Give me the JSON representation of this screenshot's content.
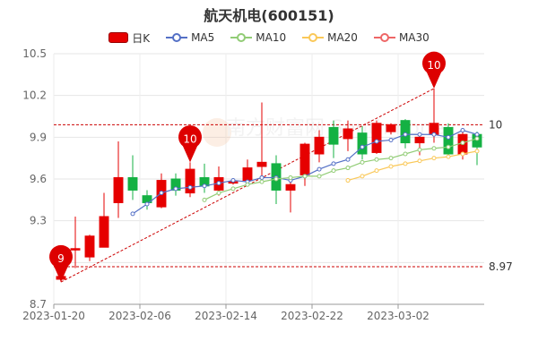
{
  "colors": {
    "up": "#e60000",
    "down": "#14b143",
    "ma5": "#5470c6",
    "ma10": "#91cc75",
    "ma20": "#fac858",
    "ma30": "#ee6666",
    "pin": "#dd0000",
    "ref": "#cc0000"
  },
  "watermark": "南方财富网 Southmoney",
  "chart_data": {
    "type": "candlestick",
    "title": "航天机电(600151)",
    "legend": [
      "日K",
      "MA5",
      "MA10",
      "MA20",
      "MA30"
    ],
    "legend_placement": "top-center",
    "ylim": [
      8.7,
      10.5
    ],
    "yticks": [
      8.7,
      9.0,
      9.3,
      9.6,
      9.9,
      10.2,
      10.5
    ],
    "ytick_labels": [
      "8.7",
      "",
      "9.3",
      "9.6",
      "9.9",
      "10.2",
      "10.5"
    ],
    "xtick_labels": [
      {
        "index": 0,
        "label": "2023-01-20"
      },
      {
        "index": 6,
        "label": "2023-02-06"
      },
      {
        "index": 12,
        "label": "2023-02-14"
      },
      {
        "index": 18,
        "label": "2023-02-22"
      },
      {
        "index": 24,
        "label": "2023-03-02"
      }
    ],
    "grid": true,
    "candles": [
      {
        "open": 8.88,
        "close": 8.9,
        "low": 8.86,
        "high": 8.92
      },
      {
        "open": 9.09,
        "close": 9.1,
        "low": 8.96,
        "high": 9.33
      },
      {
        "open": 9.04,
        "close": 9.19,
        "low": 9.01,
        "high": 9.2
      },
      {
        "open": 9.11,
        "close": 9.33,
        "low": 9.11,
        "high": 9.5
      },
      {
        "open": 9.43,
        "close": 9.61,
        "low": 9.32,
        "high": 9.87
      },
      {
        "open": 9.61,
        "close": 9.52,
        "low": 9.45,
        "high": 9.77
      },
      {
        "open": 9.48,
        "close": 9.43,
        "low": 9.38,
        "high": 9.52
      },
      {
        "open": 9.4,
        "close": 9.59,
        "low": 9.39,
        "high": 9.64
      },
      {
        "open": 9.6,
        "close": 9.52,
        "low": 9.48,
        "high": 9.64
      },
      {
        "open": 9.5,
        "close": 9.67,
        "low": 9.47,
        "high": 9.72
      },
      {
        "open": 9.61,
        "close": 9.55,
        "low": 9.5,
        "high": 9.71
      },
      {
        "open": 9.52,
        "close": 9.61,
        "low": 9.48,
        "high": 9.69
      },
      {
        "open": 9.58,
        "close": 9.58,
        "low": 9.56,
        "high": 9.6
      },
      {
        "open": 9.59,
        "close": 9.68,
        "low": 9.58,
        "high": 9.74
      },
      {
        "open": 9.69,
        "close": 9.72,
        "low": 9.58,
        "high": 10.15
      },
      {
        "open": 9.71,
        "close": 9.52,
        "low": 9.42,
        "high": 9.77
      },
      {
        "open": 9.52,
        "close": 9.56,
        "low": 9.36,
        "high": 9.62
      },
      {
        "open": 9.63,
        "close": 9.85,
        "low": 9.55,
        "high": 9.86
      },
      {
        "open": 9.78,
        "close": 9.9,
        "low": 9.72,
        "high": 9.95
      },
      {
        "open": 9.97,
        "close": 9.85,
        "low": 9.75,
        "high": 10.02
      },
      {
        "open": 9.89,
        "close": 9.96,
        "low": 9.8,
        "high": 10.02
      },
      {
        "open": 9.93,
        "close": 9.78,
        "low": 9.74,
        "high": 9.98
      },
      {
        "open": 9.79,
        "close": 10.0,
        "low": 9.78,
        "high": 10.02
      },
      {
        "open": 9.94,
        "close": 9.99,
        "low": 9.92,
        "high": 10.0
      },
      {
        "open": 10.02,
        "close": 9.86,
        "low": 9.82,
        "high": 10.03
      },
      {
        "open": 9.86,
        "close": 9.9,
        "low": 9.77,
        "high": 9.93
      },
      {
        "open": 9.92,
        "close": 10.0,
        "low": 9.86,
        "high": 10.25
      },
      {
        "open": 9.97,
        "close": 9.78,
        "low": 9.76,
        "high": 10.0
      },
      {
        "open": 9.78,
        "close": 9.92,
        "low": 9.74,
        "high": 9.94
      },
      {
        "open": 9.92,
        "close": 9.83,
        "low": 9.7,
        "high": 9.94
      }
    ],
    "series": [
      {
        "name": "MA5",
        "start": 5,
        "values": [
          9.35,
          9.42,
          9.5,
          9.53,
          9.54,
          9.55,
          9.57,
          9.59,
          9.58,
          9.61,
          9.61,
          9.59,
          9.62,
          9.67,
          9.71,
          9.74,
          9.83,
          9.87,
          9.88,
          9.92,
          9.92,
          9.92,
          9.9,
          9.95,
          9.92
        ]
      },
      {
        "name": "MA10",
        "start": 10,
        "values": [
          9.45,
          9.5,
          9.53,
          9.56,
          9.58,
          9.6,
          9.61,
          9.62,
          9.62,
          9.66,
          9.68,
          9.72,
          9.74,
          9.75,
          9.78,
          9.81,
          9.82,
          9.83,
          9.86,
          9.89
        ]
      },
      {
        "name": "MA20",
        "start": 20,
        "values": [
          9.59,
          9.62,
          9.66,
          9.69,
          9.71,
          9.73,
          9.75,
          9.76,
          9.78,
          9.8
        ]
      },
      {
        "name": "MA30",
        "start": 29,
        "values": []
      }
    ],
    "markers": [
      {
        "label": "9",
        "index": 0,
        "value": 8.86
      },
      {
        "label": "10",
        "index": 9,
        "value": 9.72
      },
      {
        "label": "10",
        "index": 26,
        "value": 10.25
      }
    ],
    "reference_lines": [
      {
        "label": "10",
        "value": 9.99
      },
      {
        "label": "8.97",
        "value": 8.97
      }
    ]
  }
}
